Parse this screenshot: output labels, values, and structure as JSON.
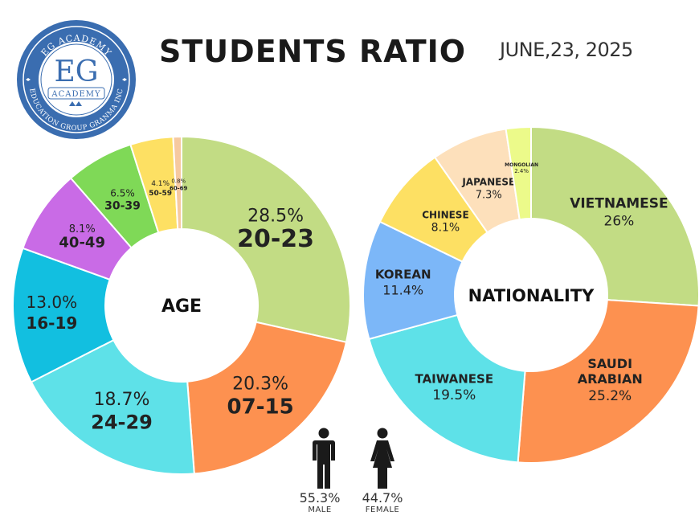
{
  "header": {
    "title": "STUDENTS RATIO",
    "date": "JUNE,23, 2025"
  },
  "logo": {
    "top_text": "EG ACADEMY",
    "monogram": "EG",
    "ribbon": "ACADEMY",
    "bottom_text": "EDUCATION GROUP GRANMA INC",
    "colors": {
      "primary": "#3a6db0",
      "ring": "#ffffff"
    }
  },
  "chart_data": [
    {
      "type": "pie",
      "title": "",
      "center_label": "AGE",
      "slices": [
        {
          "label": "20-23",
          "value": 28.5,
          "pct_text": "28.5%",
          "color": "#c2dc84"
        },
        {
          "label": "07-15",
          "value": 20.3,
          "pct_text": "20.3%",
          "color": "#fd9150"
        },
        {
          "label": "24-29",
          "value": 18.7,
          "pct_text": "18.7%",
          "color": "#5ee1e8"
        },
        {
          "label": "16-19",
          "value": 13.0,
          "pct_text": "13.0%",
          "color": "#12bfe0"
        },
        {
          "label": "40-49",
          "value": 8.1,
          "pct_text": "8.1%",
          "color": "#c96be6"
        },
        {
          "label": "30-39",
          "value": 6.5,
          "pct_text": "6.5%",
          "color": "#7fd957"
        },
        {
          "label": "50-59",
          "value": 4.1,
          "pct_text": "4.1%",
          "color": "#fde063"
        },
        {
          "label": "60-69",
          "value": 0.8,
          "pct_text": "0.8%",
          "color": "#f6c9a0"
        }
      ]
    },
    {
      "type": "pie",
      "title": "",
      "center_label": "NATIONALITY",
      "slices": [
        {
          "label": "VIETNAMESE",
          "value": 26.0,
          "pct_text": "26%",
          "color": "#c2dc84"
        },
        {
          "label": "SAUDI ARABIAN",
          "value": 25.2,
          "pct_text": "25.2%",
          "color": "#fd9150"
        },
        {
          "label": "TAIWANESE",
          "value": 19.5,
          "pct_text": "19.5%",
          "color": "#5ee1e8"
        },
        {
          "label": "KOREAN",
          "value": 11.4,
          "pct_text": "11.4%",
          "color": "#7cb7f8"
        },
        {
          "label": "CHINESE",
          "value": 8.1,
          "pct_text": "8.1%",
          "color": "#fde063"
        },
        {
          "label": "JAPANESE",
          "value": 7.3,
          "pct_text": "7.3%",
          "color": "#fde0bb"
        },
        {
          "label": "MONGOLIAN",
          "value": 2.4,
          "pct_text": "2.4%",
          "color": "#ecfa8a"
        }
      ]
    }
  ],
  "gender": {
    "male": {
      "pct": "55.3%",
      "label": "MALE",
      "icon": "male-person-icon"
    },
    "female": {
      "pct": "44.7%",
      "label": "FEMALE",
      "icon": "female-person-icon"
    }
  }
}
